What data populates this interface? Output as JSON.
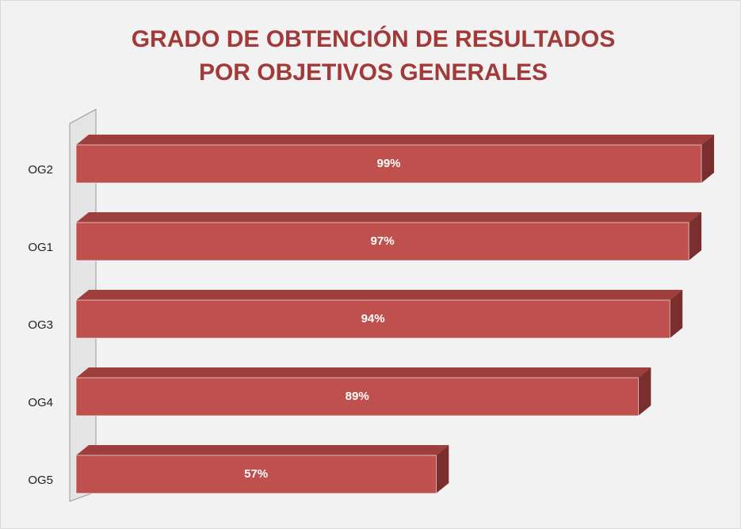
{
  "chart_data": {
    "type": "bar",
    "orientation": "horizontal",
    "three_d": true,
    "title": "GRADO DE OBTENCIÓN DE RESULTADOS POR OBJETIVOS GENERALES",
    "categories": [
      "OG2",
      "OG1",
      "OG3",
      "OG4",
      "OG5"
    ],
    "values": [
      99,
      97,
      94,
      89,
      57
    ],
    "value_labels": [
      "99%",
      "97%",
      "94%",
      "89%",
      "57%"
    ],
    "color": "#c0504d",
    "xlim": [
      0,
      100
    ]
  }
}
